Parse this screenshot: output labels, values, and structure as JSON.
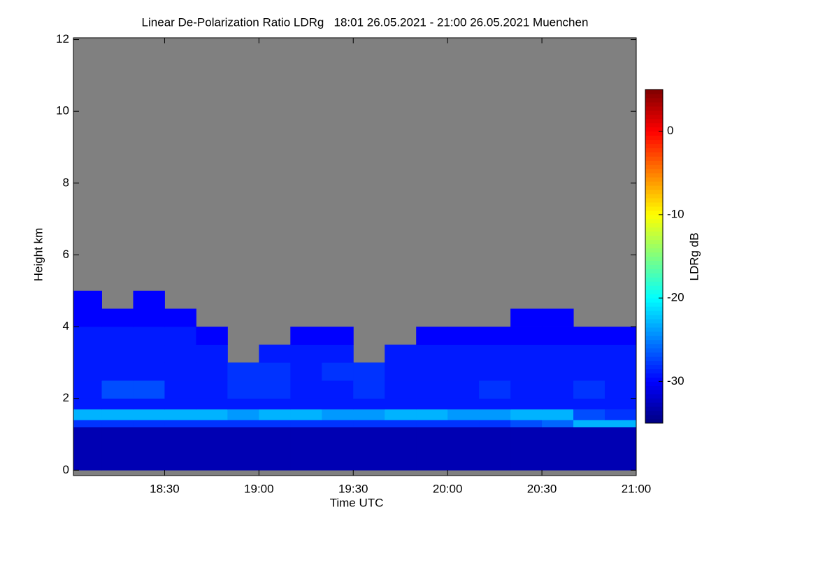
{
  "chart_data": {
    "type": "heatmap",
    "title": "Linear De-Polarization Ratio LDRg   18:01 26.05.2021 - 21:00 26.05.2021 Muenchen",
    "xlabel": "Time UTC",
    "ylabel": "Height km",
    "colorbar_label": "LDRg dB",
    "colormap": "jet",
    "missing_color": "#808080",
    "x_bins": [
      1081,
      1090,
      1100,
      1110,
      1120,
      1130,
      1140,
      1150,
      1160,
      1170,
      1180,
      1190,
      1200,
      1210,
      1220,
      1230,
      1240,
      1250,
      1260
    ],
    "y_bins": [
      0,
      1.2,
      1.4,
      1.7,
      2,
      2.5,
      3,
      3.5,
      4,
      4.5,
      5,
      5.5
    ],
    "values": [
      [
        -33,
        -33,
        -33,
        -33,
        -33,
        -33,
        -33,
        -33,
        -33,
        -33,
        -33,
        -33,
        -33,
        -33,
        -33,
        -33,
        -33,
        -33
      ],
      [
        -28,
        -28,
        -28,
        -28,
        -28,
        -28,
        -28,
        -28,
        -28,
        -28,
        -28,
        -28,
        -28,
        -28,
        -27,
        -26,
        -23,
        -23
      ],
      [
        -23,
        -23,
        -23,
        -23,
        -23,
        -24,
        -23,
        -23,
        -24,
        -24,
        -23,
        -23,
        -24,
        -24,
        -23,
        -23,
        -27,
        -28
      ],
      [
        -29,
        -29,
        -29,
        -29,
        -29,
        -29,
        -29,
        -29,
        -29,
        -29,
        -29,
        -29,
        -29,
        -29,
        -29,
        -29,
        -29,
        -29
      ],
      [
        -29,
        -27,
        -27,
        -29,
        -29,
        -28,
        -28,
        -29,
        -29,
        -28,
        -29,
        -29,
        -29,
        -28,
        -29,
        -29,
        -28,
        -29
      ],
      [
        -29,
        -29,
        -29,
        -29,
        -29,
        -28,
        -28,
        -29,
        -28,
        -28,
        -29,
        -29,
        -29,
        -29,
        -29,
        -29,
        -29,
        -29
      ],
      [
        -29,
        -29,
        -29,
        -29,
        -29,
        null,
        -29,
        -29,
        -29,
        null,
        -29,
        -29,
        -29,
        -29,
        -29,
        -29,
        -29,
        -29
      ],
      [
        -29,
        -29,
        -29,
        -29,
        -30,
        null,
        null,
        -30,
        -30,
        null,
        null,
        -30,
        -30,
        -30,
        -30,
        -30,
        -30,
        -30
      ],
      [
        -30,
        -30,
        -30,
        -30,
        null,
        null,
        null,
        null,
        null,
        null,
        null,
        null,
        null,
        null,
        -30,
        -30,
        null,
        null
      ],
      [
        -30,
        null,
        -30,
        null,
        null,
        null,
        null,
        null,
        null,
        null,
        null,
        null,
        null,
        null,
        null,
        null,
        null,
        null
      ],
      [
        null,
        null,
        null,
        null,
        null,
        null,
        null,
        null,
        null,
        null,
        null,
        null,
        null,
        null,
        null,
        null,
        null,
        null
      ]
    ],
    "xlim": [
      1081,
      1260
    ],
    "ylim": [
      -0.15,
      12.05
    ],
    "xticks": [
      {
        "value": 1110,
        "label": "18:30"
      },
      {
        "value": 1140,
        "label": "19:00"
      },
      {
        "value": 1170,
        "label": "19:30"
      },
      {
        "value": 1200,
        "label": "20:00"
      },
      {
        "value": 1230,
        "label": "20:30"
      },
      {
        "value": 1260,
        "label": "21:00"
      }
    ],
    "yticks": [
      0,
      2,
      4,
      6,
      8,
      10,
      12
    ],
    "clim": [
      -35,
      5
    ],
    "cticks": [
      0,
      -10,
      -20,
      -30
    ]
  }
}
